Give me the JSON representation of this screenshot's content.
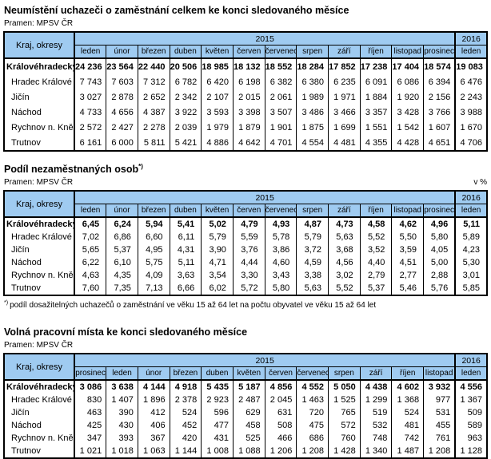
{
  "colors": {
    "header_bg": "#9FCBF1",
    "border": "#000000",
    "text": "#000000"
  },
  "tables": [
    {
      "id": "unemployed-total",
      "title": "Neumístění uchazeči o zaměstnání celkem ke konci sledovaného měsíce",
      "source": "Pramen: MPSV ČR",
      "unit_note": "",
      "corner_label": "Kraj, okresy",
      "year_left": "2015",
      "year_right": "2016",
      "months": [
        "leden",
        "únor",
        "březen",
        "duben",
        "květen",
        "červen",
        "červenec",
        "srpen",
        "září",
        "říjen",
        "listopad",
        "prosinec"
      ],
      "month_right": "leden",
      "rows": [
        {
          "label": "Královéhradecký kr",
          "bold": true,
          "values": [
            "24 236",
            "23 564",
            "22 440",
            "20 506",
            "18 985",
            "18 132",
            "18 552",
            "18 284",
            "17 852",
            "17 238",
            "17 404",
            "18 574",
            "19 083"
          ]
        },
        {
          "label": "Hradec Králové",
          "bold": false,
          "values": [
            "7 743",
            "7 603",
            "7 312",
            "6 782",
            "6 420",
            "6 198",
            "6 382",
            "6 380",
            "6 235",
            "6 091",
            "6 086",
            "6 394",
            "6 476"
          ]
        },
        {
          "label": "Jičín",
          "bold": false,
          "values": [
            "3 027",
            "2 878",
            "2 652",
            "2 342",
            "2 107",
            "2 015",
            "2 061",
            "1 989",
            "1 971",
            "1 884",
            "1 920",
            "2 156",
            "2 243"
          ]
        },
        {
          "label": "Náchod",
          "bold": false,
          "values": [
            "4 733",
            "4 656",
            "4 387",
            "3 922",
            "3 593",
            "3 398",
            "3 507",
            "3 486",
            "3 466",
            "3 357",
            "3 428",
            "3 766",
            "3 988"
          ]
        },
        {
          "label": "Rychnov n. Kněž.",
          "bold": false,
          "values": [
            "2 572",
            "2 427",
            "2 278",
            "2 039",
            "1 979",
            "1 879",
            "1 901",
            "1 875",
            "1 699",
            "1 551",
            "1 542",
            "1 607",
            "1 670"
          ]
        },
        {
          "label": "Trutnov",
          "bold": false,
          "values": [
            "6 161",
            "6 000",
            "5 811",
            "5 421",
            "4 886",
            "4 642",
            "4 701",
            "4 554",
            "4 481",
            "4 355",
            "4 428",
            "4 651",
            "4 706"
          ]
        }
      ]
    },
    {
      "id": "unemployment-share",
      "title": "Podíl nezaměstnaných osob",
      "title_sup": "*)",
      "source": "Pramen: MPSV ČR",
      "unit_note": "v %",
      "corner_label": "Kraj, okresy",
      "year_left": "2015",
      "year_right": "2016",
      "months": [
        "leden",
        "únor",
        "březen",
        "duben",
        "květen",
        "červen",
        "červenec",
        "srpen",
        "září",
        "říjen",
        "listopad",
        "prosinec"
      ],
      "month_right": "leden",
      "rows": [
        {
          "label": "Královéhradecký kr",
          "bold": true,
          "values": [
            "6,45",
            "6,24",
            "5,94",
            "5,41",
            "5,02",
            "4,79",
            "4,93",
            "4,87",
            "4,73",
            "4,58",
            "4,62",
            "4,96",
            "5,11"
          ]
        },
        {
          "label": "Hradec Králové",
          "bold": false,
          "values": [
            "7,02",
            "6,86",
            "6,60",
            "6,11",
            "5,79",
            "5,59",
            "5,78",
            "5,79",
            "5,63",
            "5,52",
            "5,50",
            "5,80",
            "5,89"
          ]
        },
        {
          "label": "Jičín",
          "bold": false,
          "values": [
            "5,65",
            "5,37",
            "4,95",
            "4,31",
            "3,90",
            "3,76",
            "3,86",
            "3,72",
            "3,68",
            "3,52",
            "3,59",
            "4,05",
            "4,23"
          ]
        },
        {
          "label": "Náchod",
          "bold": false,
          "values": [
            "6,22",
            "6,10",
            "5,75",
            "5,11",
            "4,71",
            "4,44",
            "4,60",
            "4,59",
            "4,56",
            "4,40",
            "4,51",
            "5,00",
            "5,30"
          ]
        },
        {
          "label": "Rychnov n. Kněž.",
          "bold": false,
          "values": [
            "4,63",
            "4,35",
            "4,09",
            "3,63",
            "3,54",
            "3,30",
            "3,43",
            "3,38",
            "3,02",
            "2,79",
            "2,77",
            "2,88",
            "3,01"
          ]
        },
        {
          "label": "Trutnov",
          "bold": false,
          "values": [
            "7,60",
            "7,35",
            "7,13",
            "6,66",
            "6,02",
            "5,72",
            "5,80",
            "5,63",
            "5,52",
            "5,37",
            "5,46",
            "5,76",
            "5,85"
          ]
        }
      ],
      "footnote_sup": "*)",
      "footnote": "podíl dosažitelných uchazečů o zaměstnání ve věku 15 až 64 let na počtu obyvatel ve věku 15 až 64 let"
    },
    {
      "id": "vacancies",
      "title": "Volná pracovní místa ke konci sledovaného měsíce",
      "source": "Pramen: MPSV ČR",
      "unit_note": "",
      "corner_label": "Kraj, okresy",
      "year_left": "2015",
      "year_right": "2016",
      "months": [
        "prosinec",
        "leden",
        "únor",
        "březen",
        "duben",
        "květen",
        "červen",
        "červenec",
        "srpen",
        "září",
        "říjen",
        "listopad"
      ],
      "month_right": "leden",
      "rows": [
        {
          "label": "Královéhradecký kr",
          "bold": true,
          "values": [
            "3 086",
            "3 638",
            "4 144",
            "4 918",
            "5 435",
            "5 187",
            "4 856",
            "4 552",
            "5 050",
            "4 438",
            "4 602",
            "3 932",
            "4 556"
          ]
        },
        {
          "label": "Hradec Králové",
          "bold": false,
          "values": [
            "830",
            "1 407",
            "1 896",
            "2 378",
            "2 923",
            "2 487",
            "2 045",
            "1 463",
            "1 525",
            "1 299",
            "1 368",
            "977",
            "1 367"
          ]
        },
        {
          "label": "Jičín",
          "bold": false,
          "values": [
            "463",
            "390",
            "412",
            "524",
            "596",
            "629",
            "631",
            "720",
            "765",
            "519",
            "524",
            "531",
            "509"
          ]
        },
        {
          "label": "Náchod",
          "bold": false,
          "values": [
            "425",
            "430",
            "406",
            "452",
            "477",
            "458",
            "508",
            "475",
            "572",
            "532",
            "481",
            "455",
            "589"
          ]
        },
        {
          "label": "Rychnov n. Kněž.",
          "bold": false,
          "values": [
            "347",
            "393",
            "367",
            "420",
            "431",
            "525",
            "466",
            "686",
            "760",
            "748",
            "742",
            "761",
            "963"
          ]
        },
        {
          "label": "Trutnov",
          "bold": false,
          "values": [
            "1 021",
            "1 018",
            "1 063",
            "1 144",
            "1 008",
            "1 088",
            "1 206",
            "1 208",
            "1 428",
            "1 340",
            "1 487",
            "1 208",
            "1 128"
          ]
        }
      ]
    }
  ]
}
